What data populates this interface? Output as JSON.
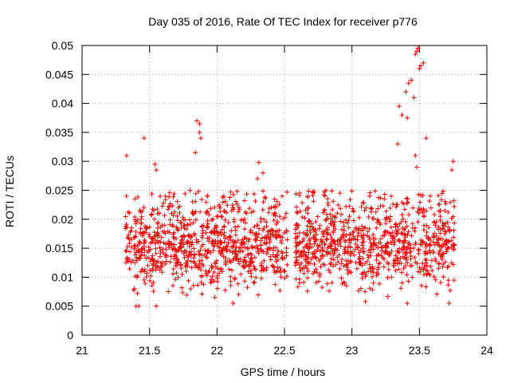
{
  "chart_data": {
    "type": "scatter",
    "title": "Day 035 of 2016, Rate Of TEC Index for receiver p776",
    "xlabel": "GPS time / hours",
    "ylabel": "ROTI / TECUs",
    "xlim": [
      21,
      24
    ],
    "ylim": [
      0,
      0.05
    ],
    "x_ticks": [
      "21",
      "21.5",
      "22",
      "22.5",
      "23",
      "23.5",
      "24"
    ],
    "y_ticks": [
      "0",
      "0.005",
      "0.01",
      "0.015",
      "0.02",
      "0.025",
      "0.03",
      "0.035",
      "0.04",
      "0.045",
      "0.05"
    ],
    "grid": true,
    "marker": "+",
    "series_color": "#ee0000",
    "data_segments": [
      {
        "x_start": 21.32,
        "x_end": 22.52,
        "y_min": 0.005,
        "y_max": 0.025
      },
      {
        "x_start": 22.58,
        "x_end": 23.76,
        "y_min": 0.005,
        "y_max": 0.025
      }
    ],
    "notable_points": [
      {
        "x": 21.33,
        "y": 0.031
      },
      {
        "x": 21.46,
        "y": 0.034
      },
      {
        "x": 21.54,
        "y": 0.0295
      },
      {
        "x": 21.55,
        "y": 0.0285
      },
      {
        "x": 21.84,
        "y": 0.0315
      },
      {
        "x": 21.85,
        "y": 0.037
      },
      {
        "x": 21.87,
        "y": 0.0365
      },
      {
        "x": 21.88,
        "y": 0.034
      },
      {
        "x": 21.87,
        "y": 0.035
      },
      {
        "x": 22.31,
        "y": 0.0298
      },
      {
        "x": 22.34,
        "y": 0.028
      },
      {
        "x": 22.3,
        "y": 0.027
      },
      {
        "x": 23.34,
        "y": 0.033
      },
      {
        "x": 23.35,
        "y": 0.0395
      },
      {
        "x": 23.37,
        "y": 0.038
      },
      {
        "x": 23.4,
        "y": 0.042
      },
      {
        "x": 23.41,
        "y": 0.0375
      },
      {
        "x": 23.42,
        "y": 0.0435
      },
      {
        "x": 23.44,
        "y": 0.044
      },
      {
        "x": 23.46,
        "y": 0.041
      },
      {
        "x": 23.47,
        "y": 0.0485
      },
      {
        "x": 23.48,
        "y": 0.049
      },
      {
        "x": 23.49,
        "y": 0.0495
      },
      {
        "x": 23.5,
        "y": 0.046
      },
      {
        "x": 23.51,
        "y": 0.0465
      },
      {
        "x": 23.53,
        "y": 0.047
      },
      {
        "x": 23.55,
        "y": 0.034
      },
      {
        "x": 23.47,
        "y": 0.031
      },
      {
        "x": 23.48,
        "y": 0.029
      },
      {
        "x": 23.75,
        "y": 0.03
      },
      {
        "x": 23.74,
        "y": 0.0285
      },
      {
        "x": 23.41,
        "y": 0.0055
      },
      {
        "x": 23.72,
        "y": 0.0055
      },
      {
        "x": 21.4,
        "y": 0.005
      },
      {
        "x": 21.42,
        "y": 0.005
      },
      {
        "x": 21.55,
        "y": 0.005
      },
      {
        "x": 22.12,
        "y": 0.0055
      },
      {
        "x": 23.1,
        "y": 0.0058
      }
    ]
  }
}
